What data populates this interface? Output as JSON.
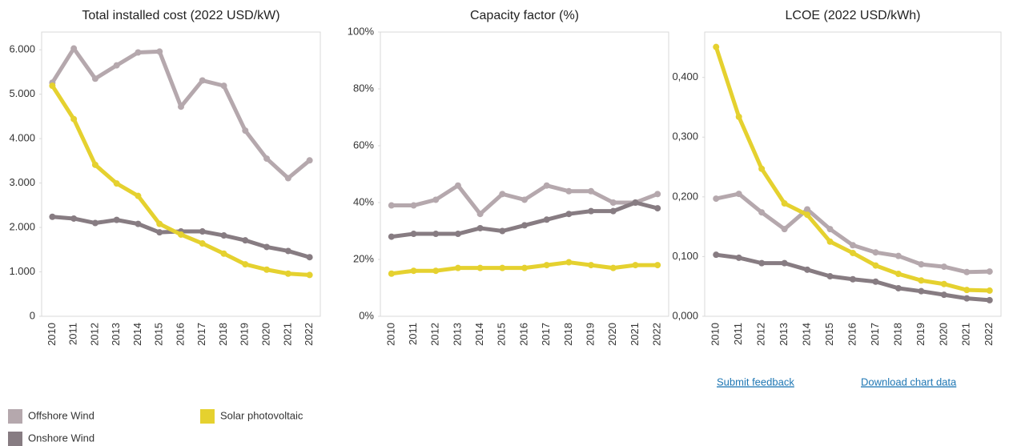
{
  "chart_data": [
    {
      "type": "line",
      "title": "Total installed cost (2022 USD/kW)",
      "categories": [
        "2010",
        "2011",
        "2012",
        "2013",
        "2014",
        "2015",
        "2016",
        "2017",
        "2018",
        "2019",
        "2020",
        "2021",
        "2022"
      ],
      "series": [
        {
          "name": "Offshore Wind",
          "color": "#b5a8ad",
          "values": [
            5260,
            6030,
            5350,
            5650,
            5940,
            5960,
            4720,
            5310,
            5190,
            4180,
            3550,
            3110,
            3510
          ]
        },
        {
          "name": "Onshore Wind",
          "color": "#877c82",
          "values": [
            2240,
            2200,
            2100,
            2170,
            2080,
            1890,
            1910,
            1910,
            1820,
            1710,
            1560,
            1470,
            1330
          ]
        },
        {
          "name": "Solar photovoltaic",
          "color": "#e5d12f",
          "values": [
            5190,
            4440,
            3410,
            2990,
            2710,
            2080,
            1840,
            1640,
            1410,
            1170,
            1050,
            960,
            930
          ]
        }
      ],
      "ylim": [
        0,
        6400
      ],
      "yticks": [
        0,
        {
          "value": 1000,
          "label": "1.000"
        },
        {
          "value": 2000,
          "label": "2.000"
        },
        {
          "value": 3000,
          "label": "3.000"
        },
        {
          "value": 4000,
          "label": "4.000"
        },
        {
          "value": 5000,
          "label": "5.000"
        },
        {
          "value": 6000,
          "label": "6.000"
        }
      ]
    },
    {
      "type": "line",
      "title": "Capacity factor (%)",
      "categories": [
        "2010",
        "2011",
        "2012",
        "2013",
        "2014",
        "2015",
        "2016",
        "2017",
        "2018",
        "2019",
        "2020",
        "2021",
        "2022"
      ],
      "series": [
        {
          "name": "Offshore Wind",
          "color": "#b5a8ad",
          "values": [
            39,
            39,
            41,
            46,
            36,
            43,
            41,
            46,
            44,
            44,
            40,
            40,
            43
          ]
        },
        {
          "name": "Onshore Wind",
          "color": "#877c82",
          "values": [
            28,
            29,
            29,
            29,
            31,
            30,
            32,
            34,
            36,
            37,
            37,
            40,
            38
          ]
        },
        {
          "name": "Solar photovoltaic",
          "color": "#e5d12f",
          "values": [
            15,
            16,
            16,
            17,
            17,
            17,
            17,
            18,
            19,
            18,
            17,
            18,
            18
          ]
        }
      ],
      "ylim": [
        0,
        100
      ],
      "yticks": [
        {
          "value": 0,
          "label": "0%"
        },
        {
          "value": 20,
          "label": "20%"
        },
        {
          "value": 40,
          "label": "40%"
        },
        {
          "value": 60,
          "label": "60%"
        },
        {
          "value": 80,
          "label": "80%"
        },
        {
          "value": 100,
          "label": "100%"
        }
      ]
    },
    {
      "type": "line",
      "title": "LCOE (2022 USD/kWh)",
      "categories": [
        "2010",
        "2011",
        "2012",
        "2013",
        "2014",
        "2015",
        "2016",
        "2017",
        "2018",
        "2019",
        "2020",
        "2021",
        "2022"
      ],
      "series": [
        {
          "name": "Offshore Wind",
          "color": "#b5a8ad",
          "values": [
            0.197,
            0.205,
            0.174,
            0.146,
            0.179,
            0.146,
            0.119,
            0.107,
            0.101,
            0.087,
            0.083,
            0.074,
            0.075
          ]
        },
        {
          "name": "Onshore Wind",
          "color": "#877c82",
          "values": [
            0.103,
            0.098,
            0.089,
            0.089,
            0.078,
            0.067,
            0.062,
            0.058,
            0.047,
            0.042,
            0.036,
            0.03,
            0.027
          ]
        },
        {
          "name": "Solar photovoltaic",
          "color": "#e5d12f",
          "values": [
            0.451,
            0.334,
            0.247,
            0.189,
            0.17,
            0.125,
            0.106,
            0.085,
            0.071,
            0.06,
            0.054,
            0.044,
            0.043
          ]
        }
      ],
      "ylim": [
        0,
        0.476
      ],
      "yticks": [
        {
          "value": 0,
          "label": "0,000"
        },
        {
          "value": 0.1,
          "label": "0,100"
        },
        {
          "value": 0.2,
          "label": "0,200"
        },
        {
          "value": 0.3,
          "label": "0,300"
        },
        {
          "value": 0.4,
          "label": "0,400"
        }
      ]
    }
  ],
  "links": {
    "feedback": "Submit feedback",
    "download": "Download chart data"
  }
}
